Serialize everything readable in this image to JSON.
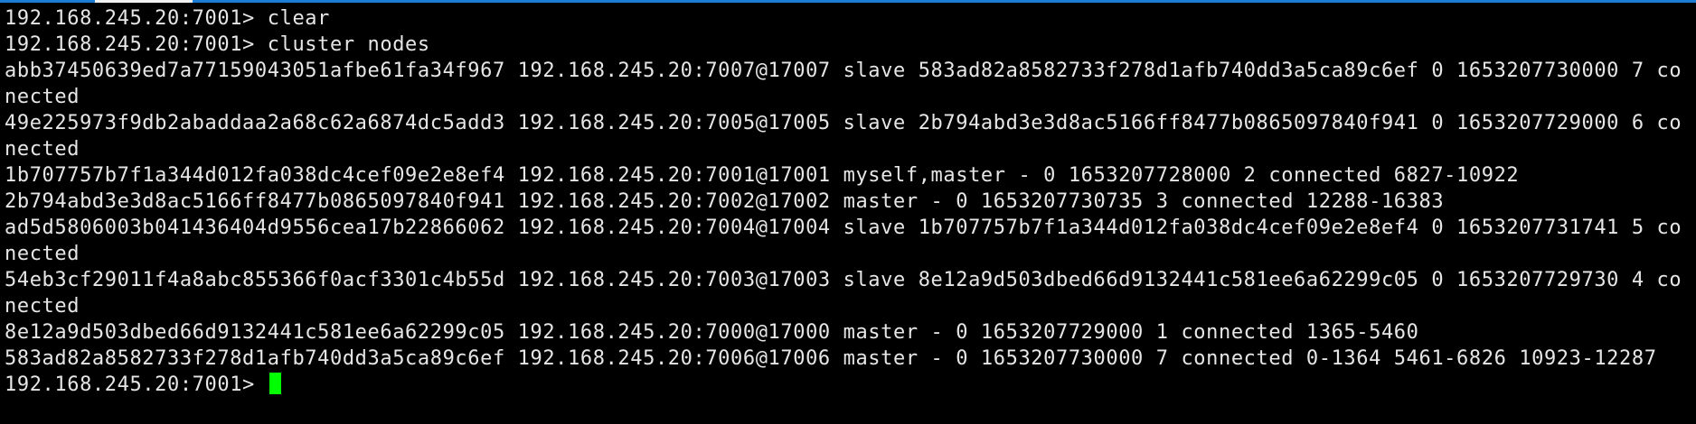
{
  "colors": {
    "background": "#000000",
    "text": "#e6e6e6",
    "cursor": "#00ff00",
    "tab_strip": "#1a7fd4"
  },
  "terminal": {
    "lines": [
      "192.168.245.20:7001> clear",
      "192.168.245.20:7001> cluster nodes",
      "abb37450639ed7a77159043051afbe61fa34f967 192.168.245.20:7007@17007 slave 583ad82a8582733f278d1afb740dd3a5ca89c6ef 0 1653207730000 7 co",
      "nected",
      "49e225973f9db2abaddaa2a68c62a6874dc5add3 192.168.245.20:7005@17005 slave 2b794abd3e3d8ac5166ff8477b0865097840f941 0 1653207729000 6 co",
      "nected",
      "1b707757b7f1a344d012fa038dc4cef09e2e8ef4 192.168.245.20:7001@17001 myself,master - 0 1653207728000 2 connected 6827-10922",
      "2b794abd3e3d8ac5166ff8477b0865097840f941 192.168.245.20:7002@17002 master - 0 1653207730735 3 connected 12288-16383",
      "ad5d5806003b041436404d9556cea17b22866062 192.168.245.20:7004@17004 slave 1b707757b7f1a344d012fa038dc4cef09e2e8ef4 0 1653207731741 5 co",
      "nected",
      "54eb3cf29011f4a8abc855366f0acf3301c4b55d 192.168.245.20:7003@17003 slave 8e12a9d503dbed66d9132441c581ee6a62299c05 0 1653207729730 4 co",
      "nected",
      "8e12a9d503dbed66d9132441c581ee6a62299c05 192.168.245.20:7000@17000 master - 0 1653207729000 1 connected 1365-5460",
      "583ad82a8582733f278d1afb740dd3a5ca89c6ef 192.168.245.20:7006@17006 master - 0 1653207730000 7 connected 0-1364 5461-6826 10923-12287"
    ],
    "prompt": "192.168.245.20:7001> "
  }
}
